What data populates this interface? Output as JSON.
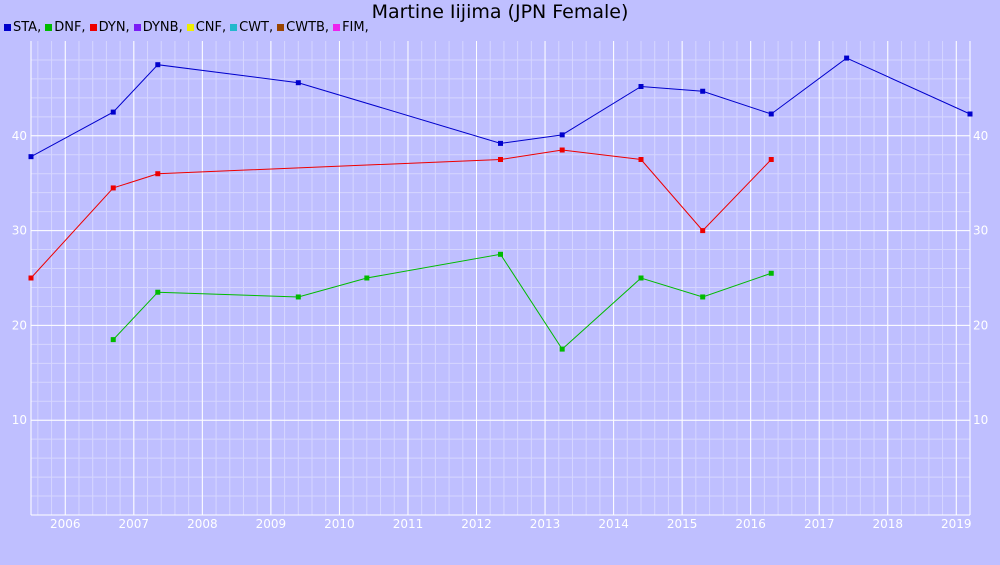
{
  "title": "Martine Iijima (JPN Female)",
  "legend": [
    {
      "label": "STA,",
      "color": "#0000cc"
    },
    {
      "label": "DNF,",
      "color": "#00bb00"
    },
    {
      "label": "DYN,",
      "color": "#ee0000"
    },
    {
      "label": "DYNB,",
      "color": "#7a1cf5"
    },
    {
      "label": "CNF,",
      "color": "#eeee00"
    },
    {
      "label": "CWT,",
      "color": "#22b8cc"
    },
    {
      "label": "CWTB,",
      "color": "#994400"
    },
    {
      "label": "FIM,",
      "color": "#ee22ee"
    }
  ],
  "chart_data": {
    "type": "line",
    "title": "Martine Iijima (JPN Female)",
    "xlabel": "",
    "ylabel": "",
    "xlim": [
      2005.5,
      2019.2
    ],
    "ylim": [
      0,
      50
    ],
    "x_ticks": [
      2006,
      2007,
      2008,
      2009,
      2010,
      2011,
      2012,
      2013,
      2014,
      2015,
      2016,
      2017,
      2018,
      2019
    ],
    "y_ticks": [
      10,
      20,
      30,
      40
    ],
    "grid": true,
    "series": [
      {
        "name": "STA",
        "color": "#0000cc",
        "x": [
          2005.5,
          2006.7,
          2007.35,
          2009.4,
          2012.35,
          2013.25,
          2014.4,
          2015.3,
          2016.3,
          2017.4,
          2019.2
        ],
        "y": [
          37.8,
          42.5,
          47.5,
          45.6,
          39.2,
          40.1,
          45.2,
          44.7,
          42.3,
          48.2,
          42.3
        ]
      },
      {
        "name": "DNF",
        "color": "#00bb00",
        "x": [
          2006.7,
          2007.35,
          2009.4,
          2010.4,
          2012.35,
          2013.25,
          2014.4,
          2015.3,
          2016.3
        ],
        "y": [
          18.5,
          23.5,
          23.0,
          25.0,
          27.5,
          17.5,
          25.0,
          23.0,
          25.5
        ]
      },
      {
        "name": "DYN",
        "color": "#ee0000",
        "x": [
          2005.5,
          2006.7,
          2007.35,
          2012.35,
          2013.25,
          2014.4,
          2015.3,
          2016.3
        ],
        "y": [
          25.0,
          34.5,
          36.0,
          37.5,
          38.5,
          37.5,
          30.0,
          37.5
        ]
      }
    ]
  }
}
